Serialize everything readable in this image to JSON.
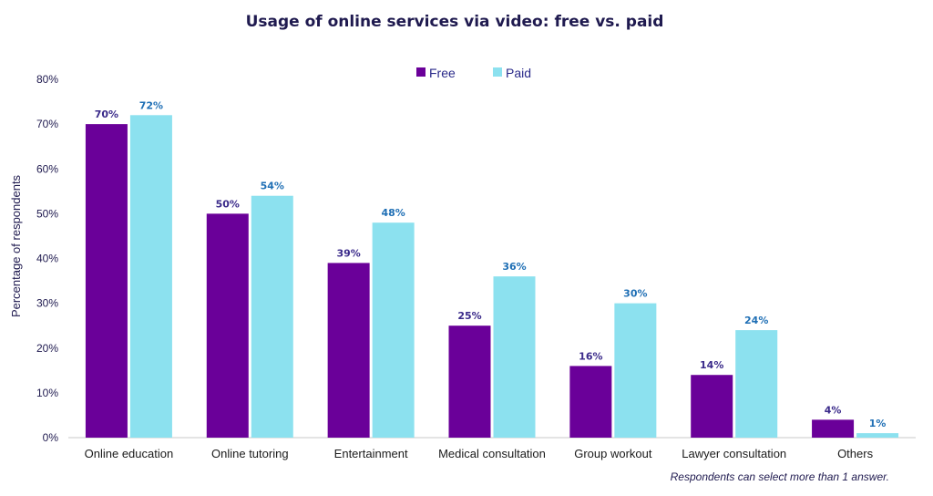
{
  "chart_data": {
    "type": "bar",
    "title": "Usage of online services via video: free vs. paid",
    "ylabel": "Percentage of respondents",
    "xlabel": "",
    "categories": [
      "Online education",
      "Online tutoring",
      "Entertainment",
      "Medical consultation",
      "Group workout",
      "Lawyer consultation",
      "Others"
    ],
    "series": [
      {
        "name": "Free",
        "values": [
          70,
          50,
          39,
          25,
          16,
          14,
          4
        ],
        "labels": [
          "70%",
          "50%",
          "39%",
          "25%",
          "16%",
          "14%",
          "4%"
        ],
        "color": "#6a0099",
        "label_color": "#3a2a8a"
      },
      {
        "name": "Paid",
        "values": [
          72,
          54,
          48,
          36,
          30,
          24,
          1
        ],
        "labels": [
          "72%",
          "54%",
          "48%",
          "36%",
          "30%",
          "24%",
          "1%"
        ],
        "color": "#8ce1ef",
        "label_color": "#1f6fb5"
      }
    ],
    "ylim": [
      0,
      80
    ],
    "yticks": [
      0,
      10,
      20,
      30,
      40,
      50,
      60,
      70,
      80
    ],
    "ytick_labels": [
      "0%",
      "10%",
      "20%",
      "30%",
      "40%",
      "50%",
      "60%",
      "70%",
      "80%"
    ],
    "grid": false,
    "legend_position": "top-center",
    "footnote": "Respondents can select more than 1 answer."
  }
}
